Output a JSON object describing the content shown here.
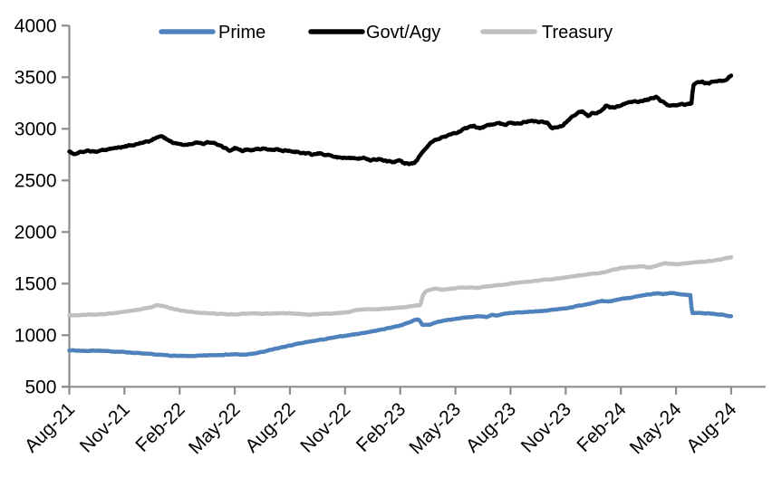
{
  "chart_data": {
    "type": "line",
    "title": "",
    "legend_position": "top",
    "grid": false,
    "background": "#ffffff",
    "axis_color": "#8c8c8c",
    "text_color": "#000000",
    "x_unit": "month",
    "points_format": "[months_since_Aug_2021, value]",
    "x_range": [
      "Aug-21",
      "Aug-24"
    ],
    "x_tick_labels": [
      "Aug-21",
      "Nov-21",
      "Feb-22",
      "May-22",
      "Aug-22",
      "Nov-22",
      "Feb-23",
      "May-23",
      "Aug-23",
      "Nov-23",
      "Feb-24",
      "May-24",
      "Aug-24"
    ],
    "y_ticks": [
      500,
      1000,
      1500,
      2000,
      2500,
      3000,
      3500,
      4000
    ],
    "ylim": [
      500,
      4000
    ],
    "xlim_months": [
      0,
      36
    ],
    "series": [
      {
        "name": "Prime",
        "color": "#4f81bd",
        "points": [
          [
            0,
            855
          ],
          [
            0.5,
            850
          ],
          [
            1,
            848
          ],
          [
            1.5,
            852
          ],
          [
            2,
            845
          ],
          [
            2.5,
            842
          ],
          [
            3,
            837
          ],
          [
            3.5,
            830
          ],
          [
            4,
            822
          ],
          [
            4.5,
            815
          ],
          [
            5,
            808
          ],
          [
            5.5,
            803
          ],
          [
            6,
            799
          ],
          [
            6.5,
            797
          ],
          [
            7,
            800
          ],
          [
            7.5,
            804
          ],
          [
            8,
            808
          ],
          [
            8.5,
            812
          ],
          [
            9,
            815
          ],
          [
            9.3,
            810
          ],
          [
            9.7,
            814
          ],
          [
            10,
            820
          ],
          [
            10.5,
            838
          ],
          [
            11,
            858
          ],
          [
            11.5,
            880
          ],
          [
            12,
            900
          ],
          [
            12.5,
            918
          ],
          [
            13,
            935
          ],
          [
            13.5,
            950
          ],
          [
            14,
            965
          ],
          [
            14.5,
            980
          ],
          [
            15,
            995
          ],
          [
            15.5,
            1008
          ],
          [
            16,
            1022
          ],
          [
            16.5,
            1038
          ],
          [
            17,
            1055
          ],
          [
            17.5,
            1075
          ],
          [
            18,
            1095
          ],
          [
            18.4,
            1118
          ],
          [
            18.8,
            1148
          ],
          [
            19,
            1155
          ],
          [
            19.2,
            1103
          ],
          [
            19.6,
            1098
          ],
          [
            20,
            1128
          ],
          [
            20.5,
            1145
          ],
          [
            21,
            1158
          ],
          [
            21.5,
            1170
          ],
          [
            22,
            1178
          ],
          [
            22.4,
            1185
          ],
          [
            22.7,
            1177
          ],
          [
            23,
            1197
          ],
          [
            23.2,
            1190
          ],
          [
            23.6,
            1205
          ],
          [
            24,
            1213
          ],
          [
            24.5,
            1220
          ],
          [
            25,
            1226
          ],
          [
            25.5,
            1233
          ],
          [
            26,
            1240
          ],
          [
            26.5,
            1250
          ],
          [
            27,
            1261
          ],
          [
            27.5,
            1278
          ],
          [
            28,
            1295
          ],
          [
            28.5,
            1315
          ],
          [
            29,
            1330
          ],
          [
            29.3,
            1323
          ],
          [
            29.7,
            1340
          ],
          [
            30,
            1352
          ],
          [
            30.5,
            1364
          ],
          [
            31,
            1377
          ],
          [
            31.5,
            1393
          ],
          [
            32,
            1405
          ],
          [
            32.3,
            1397
          ],
          [
            32.7,
            1408
          ],
          [
            33,
            1403
          ],
          [
            33.4,
            1392
          ],
          [
            33.8,
            1389
          ],
          [
            33.86,
            1213
          ],
          [
            34.2,
            1218
          ],
          [
            34.6,
            1211
          ],
          [
            35,
            1210
          ],
          [
            35.4,
            1200
          ],
          [
            35.7,
            1192
          ],
          [
            36,
            1182
          ]
        ]
      },
      {
        "name": "Govt/Agy",
        "color": "#000000",
        "points": [
          [
            0,
            2775
          ],
          [
            0.3,
            2758
          ],
          [
            0.6,
            2772
          ],
          [
            1,
            2788
          ],
          [
            1.5,
            2778
          ],
          [
            2,
            2800
          ],
          [
            2.5,
            2812
          ],
          [
            3,
            2830
          ],
          [
            3.5,
            2845
          ],
          [
            4,
            2862
          ],
          [
            4.4,
            2885
          ],
          [
            4.8,
            2922
          ],
          [
            5,
            2930
          ],
          [
            5.3,
            2900
          ],
          [
            5.6,
            2868
          ],
          [
            6,
            2852
          ],
          [
            6.3,
            2842
          ],
          [
            6.6,
            2858
          ],
          [
            7,
            2868
          ],
          [
            7.3,
            2852
          ],
          [
            7.6,
            2872
          ],
          [
            8,
            2858
          ],
          [
            8.4,
            2815
          ],
          [
            8.7,
            2795
          ],
          [
            9,
            2812
          ],
          [
            9.4,
            2788
          ],
          [
            9.7,
            2802
          ],
          [
            10,
            2795
          ],
          [
            10.4,
            2808
          ],
          [
            10.8,
            2795
          ],
          [
            11.2,
            2800
          ],
          [
            11.6,
            2792
          ],
          [
            12,
            2788
          ],
          [
            12.4,
            2775
          ],
          [
            12.8,
            2762
          ],
          [
            13.2,
            2752
          ],
          [
            13.6,
            2762
          ],
          [
            14,
            2748
          ],
          [
            14.5,
            2728
          ],
          [
            14.8,
            2712
          ],
          [
            15.2,
            2725
          ],
          [
            15.6,
            2708
          ],
          [
            16,
            2718
          ],
          [
            16.4,
            2695
          ],
          [
            16.8,
            2706
          ],
          [
            17.2,
            2692
          ],
          [
            17.6,
            2678
          ],
          [
            18,
            2690
          ],
          [
            18.2,
            2665
          ],
          [
            18.5,
            2655
          ],
          [
            18.8,
            2670
          ],
          [
            19,
            2720
          ],
          [
            19.3,
            2800
          ],
          [
            19.6,
            2858
          ],
          [
            20,
            2898
          ],
          [
            20.4,
            2920
          ],
          [
            20.8,
            2950
          ],
          [
            21.2,
            2975
          ],
          [
            21.6,
            3005
          ],
          [
            22,
            3028
          ],
          [
            22.3,
            3008
          ],
          [
            22.6,
            3022
          ],
          [
            23,
            3040
          ],
          [
            23.4,
            3052
          ],
          [
            23.7,
            3042
          ],
          [
            24,
            3058
          ],
          [
            24.4,
            3048
          ],
          [
            24.8,
            3068
          ],
          [
            25.2,
            3078
          ],
          [
            25.6,
            3068
          ],
          [
            26,
            3058
          ],
          [
            26.2,
            3002
          ],
          [
            26.5,
            3012
          ],
          [
            26.8,
            3032
          ],
          [
            27,
            3062
          ],
          [
            27.3,
            3112
          ],
          [
            27.6,
            3152
          ],
          [
            27.9,
            3168
          ],
          [
            28.2,
            3128
          ],
          [
            28.5,
            3152
          ],
          [
            28.9,
            3162
          ],
          [
            29.2,
            3228
          ],
          [
            29.5,
            3202
          ],
          [
            29.9,
            3222
          ],
          [
            30.3,
            3248
          ],
          [
            30.7,
            3258
          ],
          [
            31.1,
            3270
          ],
          [
            31.5,
            3282
          ],
          [
            31.9,
            3308
          ],
          [
            32.2,
            3272
          ],
          [
            32.5,
            3232
          ],
          [
            32.9,
            3222
          ],
          [
            33.3,
            3232
          ],
          [
            33.7,
            3242
          ],
          [
            33.86,
            3248
          ],
          [
            33.92,
            3418
          ],
          [
            34.1,
            3442
          ],
          [
            34.4,
            3455
          ],
          [
            34.7,
            3438
          ],
          [
            35,
            3452
          ],
          [
            35.4,
            3462
          ],
          [
            35.7,
            3478
          ],
          [
            36,
            3518
          ]
        ]
      },
      {
        "name": "Treasury",
        "color": "#c0c0c0",
        "points": [
          [
            0,
            1195
          ],
          [
            0.5,
            1193
          ],
          [
            1,
            1198
          ],
          [
            1.5,
            1202
          ],
          [
            2,
            1206
          ],
          [
            2.5,
            1215
          ],
          [
            3,
            1227
          ],
          [
            3.5,
            1240
          ],
          [
            4,
            1257
          ],
          [
            4.4,
            1272
          ],
          [
            4.8,
            1293
          ],
          [
            5.1,
            1287
          ],
          [
            5.4,
            1268
          ],
          [
            6,
            1242
          ],
          [
            6.5,
            1228
          ],
          [
            7,
            1218
          ],
          [
            7.5,
            1213
          ],
          [
            8,
            1210
          ],
          [
            8.5,
            1205
          ],
          [
            9,
            1202
          ],
          [
            9.5,
            1207
          ],
          [
            10,
            1212
          ],
          [
            10.5,
            1208
          ],
          [
            11,
            1213
          ],
          [
            11.5,
            1210
          ],
          [
            12,
            1213
          ],
          [
            12.5,
            1205
          ],
          [
            13,
            1200
          ],
          [
            13.5,
            1205
          ],
          [
            14,
            1209
          ],
          [
            14.5,
            1214
          ],
          [
            15,
            1220
          ],
          [
            15.4,
            1232
          ],
          [
            15.7,
            1247
          ],
          [
            16,
            1252
          ],
          [
            16.5,
            1250
          ],
          [
            17,
            1256
          ],
          [
            17.5,
            1262
          ],
          [
            18,
            1268
          ],
          [
            18.5,
            1277
          ],
          [
            18.9,
            1288
          ],
          [
            19.1,
            1293
          ],
          [
            19.22,
            1388
          ],
          [
            19.4,
            1428
          ],
          [
            19.7,
            1443
          ],
          [
            20,
            1452
          ],
          [
            20.3,
            1441
          ],
          [
            20.7,
            1450
          ],
          [
            21,
            1457
          ],
          [
            21.4,
            1462
          ],
          [
            21.8,
            1466
          ],
          [
            22.2,
            1460
          ],
          [
            22.6,
            1470
          ],
          [
            23,
            1477
          ],
          [
            23.5,
            1488
          ],
          [
            24,
            1500
          ],
          [
            24.5,
            1510
          ],
          [
            25,
            1518
          ],
          [
            25.5,
            1528
          ],
          [
            26,
            1540
          ],
          [
            26.5,
            1548
          ],
          [
            27,
            1560
          ],
          [
            27.5,
            1572
          ],
          [
            28,
            1585
          ],
          [
            28.5,
            1596
          ],
          [
            29,
            1608
          ],
          [
            29.5,
            1628
          ],
          [
            30,
            1650
          ],
          [
            30.4,
            1657
          ],
          [
            30.8,
            1663
          ],
          [
            31.2,
            1667
          ],
          [
            31.6,
            1653
          ],
          [
            32,
            1680
          ],
          [
            32.4,
            1698
          ],
          [
            32.8,
            1692
          ],
          [
            33.2,
            1688
          ],
          [
            33.6,
            1698
          ],
          [
            34,
            1707
          ],
          [
            34.5,
            1714
          ],
          [
            35,
            1722
          ],
          [
            35.5,
            1737
          ],
          [
            36,
            1755
          ]
        ]
      }
    ]
  }
}
